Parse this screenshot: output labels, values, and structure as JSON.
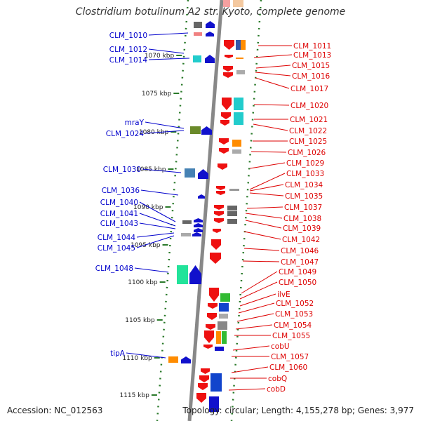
{
  "title": "Clostridium botulinum A2 str. Kyoto, complete genome",
  "accession": "Accession: NC_012563",
  "topology": "Topology: circular; Length: 4,155,278 bp; Genes: 3,977",
  "colors": {
    "left_label": "#0000cc",
    "right_label": "#dd0000",
    "ruler_tick": "#2a7a2a",
    "backbone": "#888888"
  },
  "ruler_labels": [
    "1070 kbp",
    "1075 kbp",
    "1080 kbp",
    "1085 kbp",
    "1090 kbp",
    "1095 kbp",
    "1100 kbp",
    "1105 kbp",
    "1110 kbp",
    "1115 kbp"
  ],
  "left_genes": [
    "CLM_1010",
    "CLM_1012",
    "CLM_1014",
    "mraY",
    "CLM_1024",
    "CLM_1030",
    "CLM_1036",
    "CLM_1040",
    "CLM_1041",
    "CLM_1043",
    "CLM_1044",
    "CLM_1045",
    "CLM_1048",
    "tipA"
  ],
  "right_genes": [
    "CLM_1011",
    "CLM_1013",
    "CLM_1015",
    "CLM_1016",
    "CLM_1017",
    "CLM_1020",
    "CLM_1021",
    "CLM_1022",
    "CLM_1025",
    "CLM_1026",
    "CLM_1029",
    "CLM_1033",
    "CLM_1034",
    "CLM_1035",
    "CLM_1037",
    "CLM_1038",
    "CLM_1039",
    "CLM_1042",
    "CLM_1046",
    "CLM_1047",
    "CLM_1049",
    "CLM_1050",
    "ilvE",
    "CLM_1052",
    "CLM_1053",
    "CLM_1054",
    "CLM_1055",
    "cobU",
    "CLM_1057",
    "CLM_1060",
    "cobQ",
    "cobD"
  ]
}
